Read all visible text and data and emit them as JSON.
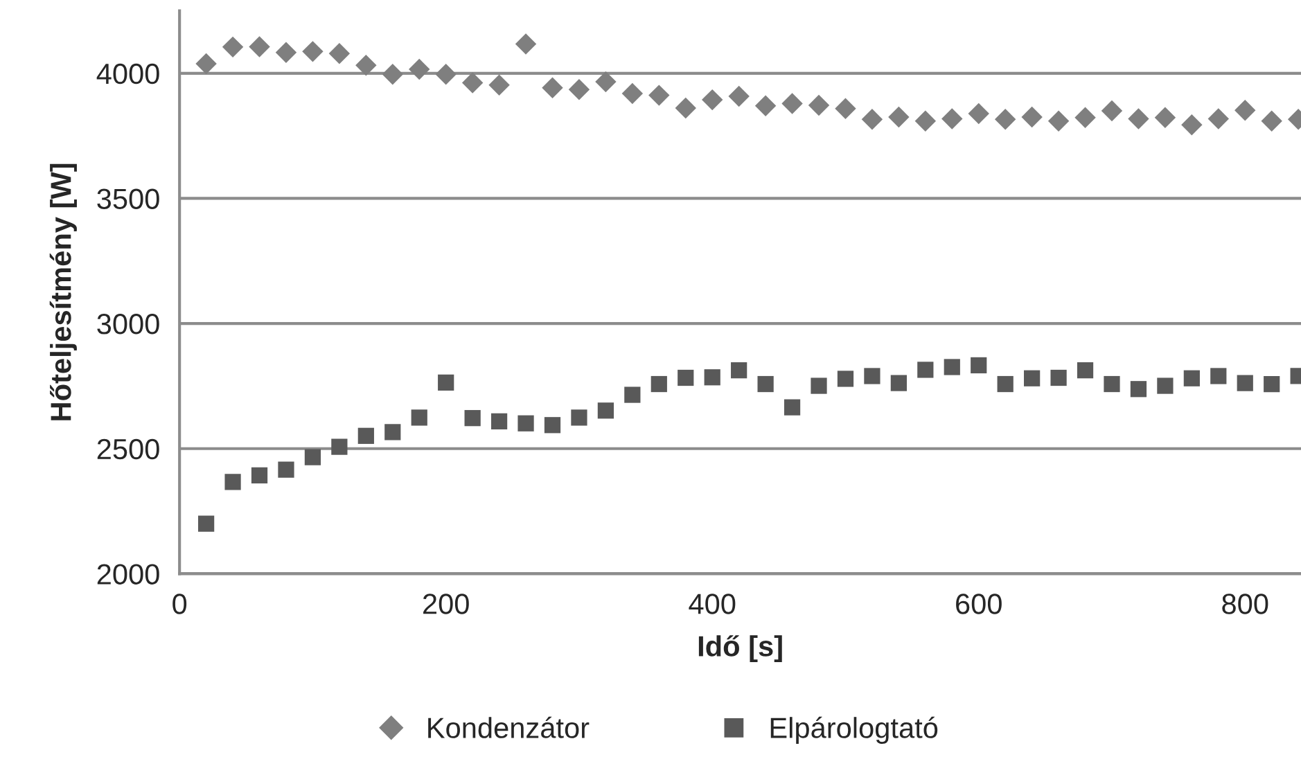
{
  "chart_data": {
    "type": "scatter",
    "xlabel": "Idő [s]",
    "ylabel": "Hőteljesítmény [W]",
    "x": [
      20,
      40,
      60,
      80,
      100,
      120,
      140,
      160,
      180,
      200,
      220,
      240,
      260,
      280,
      300,
      320,
      340,
      360,
      380,
      400,
      420,
      440,
      460,
      480,
      500,
      520,
      540,
      560,
      580,
      600,
      620,
      640,
      660,
      680,
      700,
      720,
      740,
      760,
      780,
      800,
      820,
      840
    ],
    "series": [
      {
        "name": "Kondenzátor",
        "color": "#7f7f7f",
        "marker": "diamond",
        "values": [
          4038,
          4105,
          4106,
          4083,
          4087,
          4079,
          4032,
          3996,
          4016,
          3996,
          3962,
          3953,
          4117,
          3942,
          3935,
          3966,
          3919,
          3912,
          3861,
          3894,
          3908,
          3870,
          3879,
          3872,
          3859,
          3816,
          3825,
          3809,
          3818,
          3839,
          3816,
          3825,
          3809,
          3823,
          3850,
          3818,
          3823,
          3794,
          3818,
          3852,
          3809,
          3816
        ]
      },
      {
        "name": "Elpárologtató",
        "color": "#595959",
        "marker": "square",
        "values": [
          2200,
          2367,
          2393,
          2416,
          2466,
          2507,
          2551,
          2566,
          2624,
          2764,
          2622,
          2609,
          2601,
          2594,
          2624,
          2652,
          2715,
          2758,
          2783,
          2785,
          2813,
          2758,
          2665,
          2751,
          2779,
          2790,
          2762,
          2815,
          2826,
          2833,
          2758,
          2781,
          2783,
          2813,
          2758,
          2738,
          2751,
          2781,
          2790,
          2762,
          2758,
          2790
        ]
      }
    ],
    "xlim": [
      0,
      842
    ],
    "xticks": [
      0,
      200,
      400,
      600,
      800
    ],
    "ylim": [
      2000,
      4250
    ],
    "yticks": [
      2000,
      2500,
      3000,
      3500,
      4000
    ],
    "grid": "y",
    "legend": "bottom"
  }
}
